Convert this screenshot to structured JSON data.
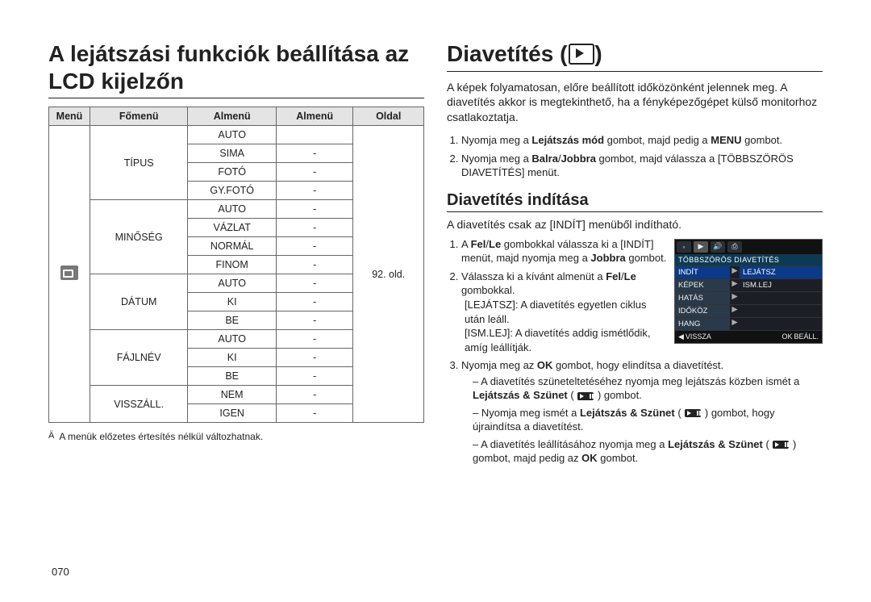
{
  "left": {
    "title": "A lejátszási funkciók beállítása az LCD kijelzőn",
    "table": {
      "headers": [
        "Menü",
        "Főmenü",
        "Almenü",
        "Almenü",
        "Oldal"
      ],
      "page_ref": "92. old.",
      "groups": [
        {
          "main": "TÍPUS",
          "rows": [
            [
              "AUTO",
              ""
            ],
            [
              "SIMA",
              "-"
            ],
            [
              "FOTÓ",
              "-"
            ],
            [
              "GY.FOTÓ",
              "-"
            ]
          ]
        },
        {
          "main": "MINŐSÉG",
          "rows": [
            [
              "AUTO",
              "-"
            ],
            [
              "VÁZLAT",
              "-"
            ],
            [
              "NORMÁL",
              "-"
            ],
            [
              "FINOM",
              "-"
            ]
          ]
        },
        {
          "main": "DÁTUM",
          "rows": [
            [
              "AUTO",
              "-"
            ],
            [
              "KI",
              "-"
            ],
            [
              "BE",
              "-"
            ]
          ]
        },
        {
          "main": "FÁJLNÉV",
          "rows": [
            [
              "AUTO",
              "-"
            ],
            [
              "KI",
              "-"
            ],
            [
              "BE",
              "-"
            ]
          ]
        },
        {
          "main": "VISSZÁLL.",
          "rows": [
            [
              "NEM",
              "-"
            ],
            [
              "IGEN",
              "-"
            ]
          ]
        }
      ]
    },
    "footnote_marker": "Ä",
    "footnote": "A menük előzetes értesítés nélkül változhatnak.",
    "page_number": "070"
  },
  "right": {
    "title": "Diavetítés (",
    "title_close": ")",
    "intro": "A képek folyamatosan, előre beállított időközönként jelennek meg. A diavetítés akkor is megtekinthető, ha a fényképezőgépet külső monitorhoz csatlakoztatja.",
    "step1_pre": "Nyomja meg a ",
    "step1_b1": "Lejátszás mód",
    "step1_mid": " gombot, majd pedig a ",
    "step1_b2": "MENU",
    "step1_post": " gombot.",
    "step2_pre": "Nyomja meg a ",
    "step2_b1": "Balra",
    "step2_slash": "/",
    "step2_b2": "Jobbra",
    "step2_post": " gombot, majd válassza a [TÖBBSZÖRÖS DIAVETÍTÉS] menüt.",
    "sub_title": "Diavetítés indítása",
    "sub_intro": "A diavetítés csak az [INDÍT] menüből indítható.",
    "s1_pre": "A ",
    "s1_b1": "Fel",
    "s1_slash": "/",
    "s1_b2": "Le",
    "s1_mid": " gombokkal válassza ki a [INDÍT] menüt, majd nyomja meg a ",
    "s1_b3": "Jobbra",
    "s1_post": " gombot.",
    "s2_pre": "Válassza ki a kívánt almenüt a ",
    "s2_b1": "Fel",
    "s2_slash": "/",
    "s2_b2": "Le",
    "s2_post": " gombokkal.",
    "s2_a_label": "[LEJÁTSZ]:",
    "s2_a": " A diavetítés egyetlen ciklus után leáll.",
    "s2_b_label": "[ISM.LEJ]:",
    "s2_b": " A diavetítés addig ismétlődik, amíg leállítják.",
    "s3_pre": "Nyomja meg az ",
    "s3_b1": "OK",
    "s3_post": " gombot, hogy elindítsa a diavetítést.",
    "dash1_pre": "A diavetítés szüneteltetéséhez nyomja meg lejátszás közben ismét a ",
    "dash1_b": "Lejátszás & Szünet",
    "dash1_post": " ) gombot.",
    "dash2_pre": "Nyomja meg ismét a ",
    "dash2_b": "Lejátszás & Szünet",
    "dash2_post": " ) gombot, hogy újraindítsa a diavetítést.",
    "dash3_pre": "A diavetítés leállításához nyomja meg a ",
    "dash3_b": "Lejátszás & Szünet",
    "dash3_mid": " ) gombot, majd pedig az ",
    "dash3_b2": "OK",
    "dash3_post": " gombot.",
    "camera_ui": {
      "title": "TÖBBSZÖRÖS DIAVETÍTÉS",
      "rows": [
        {
          "l": "INDÍT",
          "r": "LEJÁTSZ",
          "sel_l": true,
          "sel_r": true
        },
        {
          "l": "KÉPEK",
          "r": "ISM.LEJ",
          "sel_l": false,
          "sel_r": false
        },
        {
          "l": "HATÁS",
          "r": "",
          "sel_l": false,
          "sel_r": false
        },
        {
          "l": "IDŐKÖZ",
          "r": "",
          "sel_l": false,
          "sel_r": false
        },
        {
          "l": "HANG",
          "r": "",
          "sel_l": false,
          "sel_r": false
        }
      ],
      "back": "VISSZA",
      "ok": "OK",
      "set": "BEÁLL."
    }
  }
}
